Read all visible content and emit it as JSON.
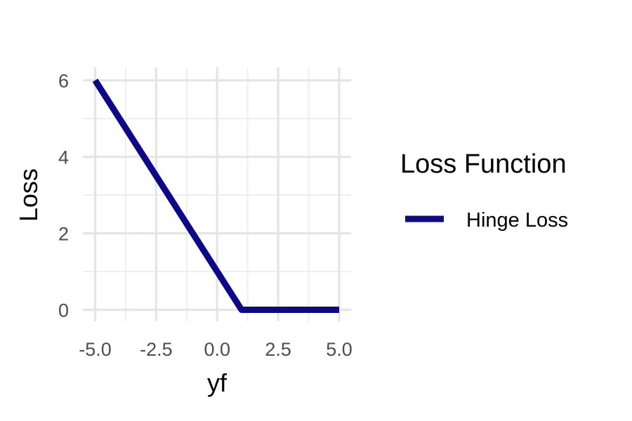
{
  "chart_data": {
    "type": "line",
    "title": "",
    "xlabel": "yf",
    "ylabel": "Loss",
    "xlim": [
      -5,
      5
    ],
    "ylim": [
      0,
      6
    ],
    "x_ticks": [
      "-5.0",
      "-2.5",
      "0.0",
      "2.5",
      "5.0"
    ],
    "y_ticks": [
      "0",
      "2",
      "4",
      "6"
    ],
    "grid": true,
    "legend": {
      "title": "Loss Function",
      "position": "right"
    },
    "series": [
      {
        "name": "Hinge Loss",
        "color": "#0d0887",
        "x": [
          -5,
          1,
          5
        ],
        "y": [
          6,
          0,
          0
        ]
      }
    ]
  }
}
